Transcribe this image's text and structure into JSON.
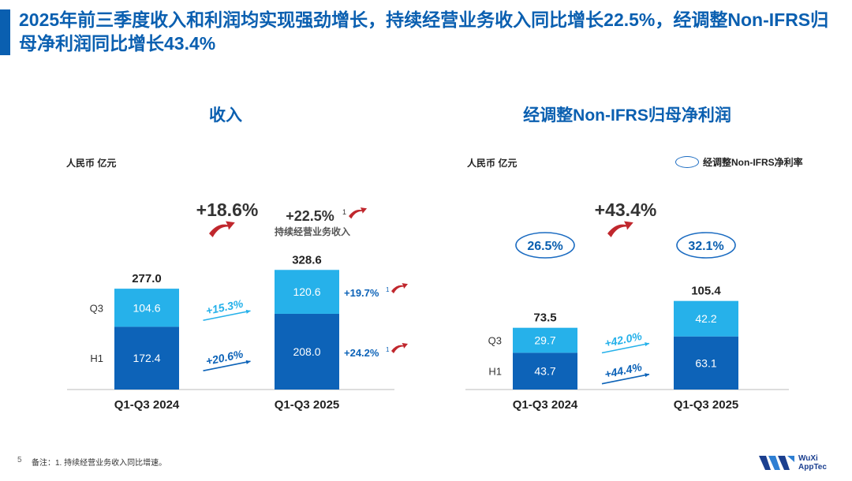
{
  "header": {
    "title": "2025年前三季度收入和利润均实现强劲增长，持续经营业务收入同比增长22.5%，经调整Non-IFRS归母净利润同比增长43.4%"
  },
  "colors": {
    "h1": "#0d63b8",
    "q3": "#26b1ea",
    "brand": "#0a5fb0",
    "red_arrow": "#c0272d",
    "blue_arrow": "#1a6bc1"
  },
  "charts": {
    "revenue": {
      "title": "收入",
      "unit": "人民币 亿元",
      "growth_total": "+18.6%",
      "growth_continuing": "+22.5%",
      "growth_continuing_sup": "1",
      "growth_continuing_label": "持续经营业务收入"
    },
    "profit": {
      "title": "经调整Non-IFRS归母净利润",
      "unit": "人民币 亿元",
      "legend_label": "经调整Non-IFRS净利率",
      "growth_total": "+43.4%"
    }
  },
  "chart_data": [
    {
      "type": "bar",
      "stacked": true,
      "title": "收入",
      "unit": "人民币 亿元",
      "categories": [
        "Q1-Q3 2024",
        "Q1-Q3 2025"
      ],
      "series": [
        {
          "name": "H1",
          "values": [
            172.4,
            208.0
          ]
        },
        {
          "name": "Q3",
          "values": [
            104.6,
            120.6
          ]
        }
      ],
      "totals": [
        277.0,
        328.6
      ],
      "segment_growth": {
        "H1": "+20.6%",
        "Q3": "+15.3%"
      },
      "continuing_growth": {
        "H1": "+24.2%",
        "Q3": "+19.7%",
        "sup": "1"
      },
      "total_growth": "+18.6%",
      "continuing_total_growth": "+22.5%"
    },
    {
      "type": "bar",
      "stacked": true,
      "title": "经调整Non-IFRS归母净利润",
      "unit": "人民币 亿元",
      "categories": [
        "Q1-Q3 2024",
        "Q1-Q3 2025"
      ],
      "series": [
        {
          "name": "H1",
          "values": [
            43.7,
            63.1
          ]
        },
        {
          "name": "Q3",
          "values": [
            29.7,
            42.2
          ]
        }
      ],
      "totals": [
        73.5,
        105.4
      ],
      "net_margin": [
        "26.5%",
        "32.1%"
      ],
      "segment_growth": {
        "H1": "+44.4%",
        "Q3": "+42.0%"
      },
      "total_growth": "+43.4%"
    }
  ],
  "footer": {
    "page": "5",
    "note": "备注：1. 持续经营业务收入同比增速。",
    "logo_line1": "WuXi",
    "logo_line2": "AppTec"
  }
}
